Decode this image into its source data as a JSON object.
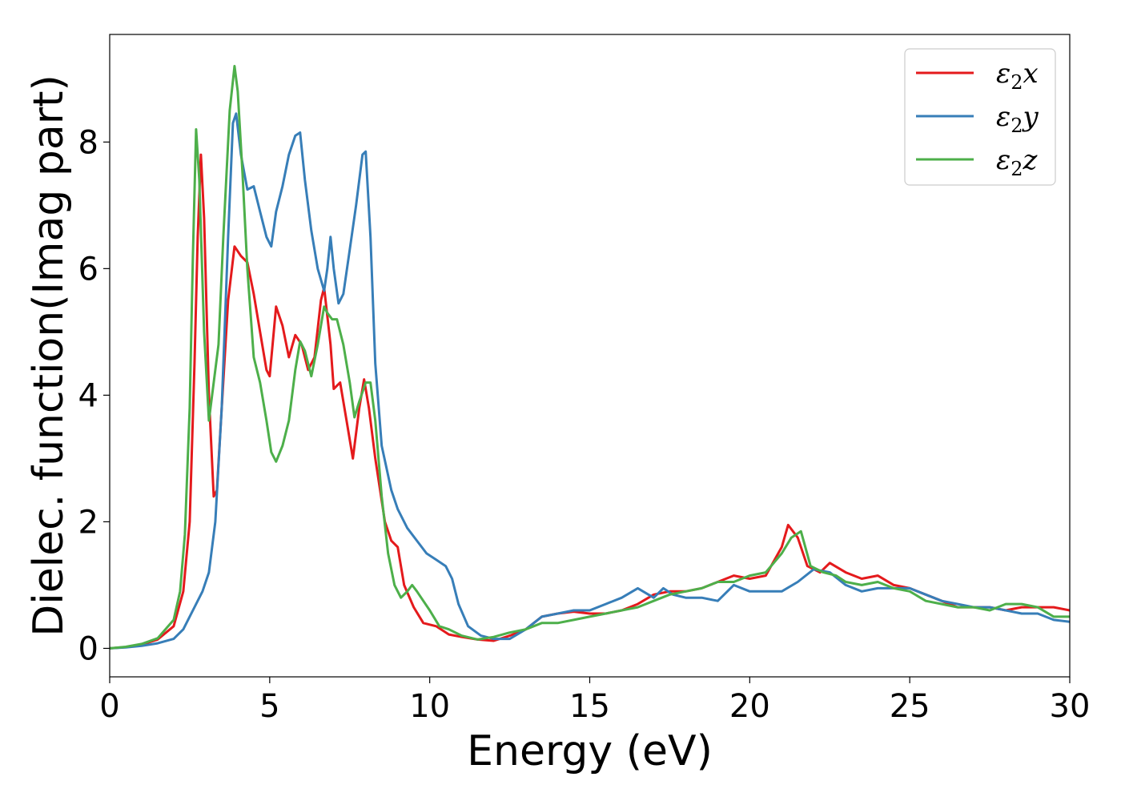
{
  "chart_data": {
    "type": "line",
    "xlabel": "Energy (eV)",
    "ylabel": "Dielec. function(Imag part)",
    "xlim": [
      0,
      30
    ],
    "ylim": [
      -0.45,
      9.7
    ],
    "xticks": [
      0,
      5,
      10,
      15,
      20,
      25,
      30
    ],
    "yticks": [
      0,
      2,
      4,
      6,
      8
    ],
    "grid": false,
    "legend_position": "top-right",
    "series": [
      {
        "name": "x",
        "legend_symbol": "ε",
        "legend_sub": "2",
        "color": "#e41a1c",
        "points": [
          [
            0,
            0
          ],
          [
            0.5,
            0.02
          ],
          [
            1.0,
            0.06
          ],
          [
            1.5,
            0.14
          ],
          [
            2.0,
            0.35
          ],
          [
            2.3,
            0.9
          ],
          [
            2.5,
            2.0
          ],
          [
            2.65,
            4.5
          ],
          [
            2.75,
            6.5
          ],
          [
            2.85,
            7.8
          ],
          [
            2.95,
            6.8
          ],
          [
            3.1,
            4.0
          ],
          [
            3.25,
            2.4
          ],
          [
            3.35,
            2.5
          ],
          [
            3.5,
            3.8
          ],
          [
            3.7,
            5.5
          ],
          [
            3.9,
            6.35
          ],
          [
            4.1,
            6.2
          ],
          [
            4.3,
            6.1
          ],
          [
            4.5,
            5.6
          ],
          [
            4.7,
            5.0
          ],
          [
            4.9,
            4.4
          ],
          [
            5.0,
            4.3
          ],
          [
            5.2,
            5.4
          ],
          [
            5.4,
            5.1
          ],
          [
            5.6,
            4.6
          ],
          [
            5.8,
            4.95
          ],
          [
            6.0,
            4.8
          ],
          [
            6.2,
            4.4
          ],
          [
            6.4,
            4.6
          ],
          [
            6.6,
            5.5
          ],
          [
            6.7,
            5.7
          ],
          [
            6.9,
            4.8
          ],
          [
            7.0,
            4.1
          ],
          [
            7.2,
            4.2
          ],
          [
            7.4,
            3.6
          ],
          [
            7.6,
            3.0
          ],
          [
            7.8,
            3.8
          ],
          [
            7.95,
            4.25
          ],
          [
            8.1,
            3.8
          ],
          [
            8.3,
            3.0
          ],
          [
            8.6,
            2.0
          ],
          [
            8.8,
            1.7
          ],
          [
            9.0,
            1.6
          ],
          [
            9.2,
            1.0
          ],
          [
            9.5,
            0.65
          ],
          [
            9.8,
            0.4
          ],
          [
            10.2,
            0.35
          ],
          [
            10.6,
            0.22
          ],
          [
            11.0,
            0.18
          ],
          [
            11.5,
            0.14
          ],
          [
            12.0,
            0.12
          ],
          [
            12.5,
            0.2
          ],
          [
            13.0,
            0.3
          ],
          [
            13.5,
            0.5
          ],
          [
            14.0,
            0.55
          ],
          [
            14.5,
            0.58
          ],
          [
            15.0,
            0.55
          ],
          [
            15.5,
            0.55
          ],
          [
            16.0,
            0.6
          ],
          [
            16.5,
            0.7
          ],
          [
            17.0,
            0.85
          ],
          [
            17.5,
            0.9
          ],
          [
            18.0,
            0.9
          ],
          [
            18.5,
            0.95
          ],
          [
            19.0,
            1.05
          ],
          [
            19.5,
            1.15
          ],
          [
            20.0,
            1.1
          ],
          [
            20.5,
            1.15
          ],
          [
            21.0,
            1.6
          ],
          [
            21.2,
            1.95
          ],
          [
            21.5,
            1.75
          ],
          [
            21.8,
            1.3
          ],
          [
            22.2,
            1.2
          ],
          [
            22.5,
            1.35
          ],
          [
            23.0,
            1.2
          ],
          [
            23.5,
            1.1
          ],
          [
            24.0,
            1.15
          ],
          [
            24.5,
            1.0
          ],
          [
            25.0,
            0.95
          ],
          [
            25.5,
            0.85
          ],
          [
            26.0,
            0.75
          ],
          [
            26.5,
            0.65
          ],
          [
            27.0,
            0.65
          ],
          [
            27.5,
            0.65
          ],
          [
            28.0,
            0.6
          ],
          [
            28.5,
            0.65
          ],
          [
            29.0,
            0.65
          ],
          [
            29.5,
            0.65
          ],
          [
            30.0,
            0.6
          ]
        ]
      },
      {
        "name": "y",
        "legend_symbol": "ε",
        "legend_sub": "2",
        "color": "#377eb8",
        "points": [
          [
            0,
            0
          ],
          [
            0.5,
            0.015
          ],
          [
            1.0,
            0.04
          ],
          [
            1.5,
            0.08
          ],
          [
            2.0,
            0.15
          ],
          [
            2.3,
            0.3
          ],
          [
            2.6,
            0.6
          ],
          [
            2.9,
            0.9
          ],
          [
            3.1,
            1.2
          ],
          [
            3.3,
            2.0
          ],
          [
            3.5,
            3.8
          ],
          [
            3.7,
            6.5
          ],
          [
            3.85,
            8.3
          ],
          [
            3.95,
            8.45
          ],
          [
            4.1,
            7.8
          ],
          [
            4.3,
            7.25
          ],
          [
            4.5,
            7.3
          ],
          [
            4.7,
            6.9
          ],
          [
            4.9,
            6.5
          ],
          [
            5.05,
            6.35
          ],
          [
            5.2,
            6.9
          ],
          [
            5.4,
            7.3
          ],
          [
            5.6,
            7.8
          ],
          [
            5.8,
            8.1
          ],
          [
            5.95,
            8.15
          ],
          [
            6.1,
            7.4
          ],
          [
            6.3,
            6.6
          ],
          [
            6.5,
            6.0
          ],
          [
            6.7,
            5.65
          ],
          [
            6.8,
            6.0
          ],
          [
            6.9,
            6.5
          ],
          [
            7.0,
            6.0
          ],
          [
            7.15,
            5.45
          ],
          [
            7.3,
            5.6
          ],
          [
            7.5,
            6.3
          ],
          [
            7.7,
            7.0
          ],
          [
            7.9,
            7.8
          ],
          [
            8.0,
            7.85
          ],
          [
            8.15,
            6.5
          ],
          [
            8.3,
            4.5
          ],
          [
            8.5,
            3.2
          ],
          [
            8.8,
            2.5
          ],
          [
            9.0,
            2.2
          ],
          [
            9.3,
            1.9
          ],
          [
            9.6,
            1.7
          ],
          [
            9.9,
            1.5
          ],
          [
            10.2,
            1.4
          ],
          [
            10.5,
            1.3
          ],
          [
            10.7,
            1.1
          ],
          [
            10.9,
            0.7
          ],
          [
            11.2,
            0.35
          ],
          [
            11.6,
            0.2
          ],
          [
            12.0,
            0.15
          ],
          [
            12.5,
            0.15
          ],
          [
            13.0,
            0.3
          ],
          [
            13.5,
            0.5
          ],
          [
            14.0,
            0.55
          ],
          [
            14.5,
            0.6
          ],
          [
            15.0,
            0.6
          ],
          [
            15.5,
            0.7
          ],
          [
            16.0,
            0.8
          ],
          [
            16.5,
            0.95
          ],
          [
            17.0,
            0.8
          ],
          [
            17.3,
            0.95
          ],
          [
            17.6,
            0.85
          ],
          [
            18.0,
            0.8
          ],
          [
            18.5,
            0.8
          ],
          [
            19.0,
            0.75
          ],
          [
            19.5,
            1.0
          ],
          [
            20.0,
            0.9
          ],
          [
            20.5,
            0.9
          ],
          [
            21.0,
            0.9
          ],
          [
            21.5,
            1.05
          ],
          [
            22.0,
            1.25
          ],
          [
            22.5,
            1.2
          ],
          [
            23.0,
            1.0
          ],
          [
            23.5,
            0.9
          ],
          [
            24.0,
            0.95
          ],
          [
            24.5,
            0.95
          ],
          [
            25.0,
            0.95
          ],
          [
            25.5,
            0.85
          ],
          [
            26.0,
            0.75
          ],
          [
            26.5,
            0.7
          ],
          [
            27.0,
            0.65
          ],
          [
            27.5,
            0.65
          ],
          [
            28.0,
            0.6
          ],
          [
            28.5,
            0.55
          ],
          [
            29.0,
            0.55
          ],
          [
            29.5,
            0.45
          ],
          [
            30.0,
            0.42
          ]
        ]
      },
      {
        "name": "z",
        "legend_symbol": "ε",
        "legend_sub": "2",
        "color": "#4daf4a",
        "points": [
          [
            0,
            0
          ],
          [
            0.5,
            0.025
          ],
          [
            1.0,
            0.07
          ],
          [
            1.5,
            0.16
          ],
          [
            2.0,
            0.45
          ],
          [
            2.2,
            0.9
          ],
          [
            2.35,
            1.8
          ],
          [
            2.5,
            3.8
          ],
          [
            2.6,
            6.2
          ],
          [
            2.7,
            8.2
          ],
          [
            2.8,
            7.4
          ],
          [
            2.95,
            5.0
          ],
          [
            3.1,
            3.6
          ],
          [
            3.25,
            4.2
          ],
          [
            3.4,
            4.8
          ],
          [
            3.55,
            6.5
          ],
          [
            3.75,
            8.5
          ],
          [
            3.9,
            9.2
          ],
          [
            4.0,
            8.8
          ],
          [
            4.15,
            7.5
          ],
          [
            4.3,
            6.0
          ],
          [
            4.5,
            4.6
          ],
          [
            4.7,
            4.2
          ],
          [
            4.9,
            3.6
          ],
          [
            5.05,
            3.1
          ],
          [
            5.2,
            2.95
          ],
          [
            5.4,
            3.2
          ],
          [
            5.6,
            3.6
          ],
          [
            5.8,
            4.4
          ],
          [
            5.95,
            4.85
          ],
          [
            6.1,
            4.7
          ],
          [
            6.3,
            4.3
          ],
          [
            6.5,
            4.8
          ],
          [
            6.7,
            5.4
          ],
          [
            6.8,
            5.3
          ],
          [
            6.95,
            5.2
          ],
          [
            7.1,
            5.2
          ],
          [
            7.3,
            4.8
          ],
          [
            7.5,
            4.2
          ],
          [
            7.65,
            3.65
          ],
          [
            7.8,
            3.9
          ],
          [
            8.0,
            4.2
          ],
          [
            8.15,
            4.2
          ],
          [
            8.3,
            3.6
          ],
          [
            8.5,
            2.4
          ],
          [
            8.7,
            1.5
          ],
          [
            8.9,
            1.0
          ],
          [
            9.1,
            0.8
          ],
          [
            9.3,
            0.9
          ],
          [
            9.45,
            1.0
          ],
          [
            9.6,
            0.9
          ],
          [
            9.8,
            0.75
          ],
          [
            10.0,
            0.6
          ],
          [
            10.3,
            0.35
          ],
          [
            10.6,
            0.3
          ],
          [
            11.0,
            0.2
          ],
          [
            11.5,
            0.14
          ],
          [
            12.0,
            0.18
          ],
          [
            12.5,
            0.25
          ],
          [
            13.0,
            0.3
          ],
          [
            13.5,
            0.4
          ],
          [
            14.0,
            0.4
          ],
          [
            14.5,
            0.45
          ],
          [
            15.0,
            0.5
          ],
          [
            15.5,
            0.55
          ],
          [
            16.0,
            0.6
          ],
          [
            16.5,
            0.65
          ],
          [
            17.0,
            0.75
          ],
          [
            17.5,
            0.85
          ],
          [
            18.0,
            0.9
          ],
          [
            18.5,
            0.95
          ],
          [
            19.0,
            1.05
          ],
          [
            19.5,
            1.05
          ],
          [
            20.0,
            1.15
          ],
          [
            20.5,
            1.2
          ],
          [
            21.0,
            1.5
          ],
          [
            21.3,
            1.75
          ],
          [
            21.6,
            1.85
          ],
          [
            21.9,
            1.3
          ],
          [
            22.3,
            1.2
          ],
          [
            22.7,
            1.15
          ],
          [
            23.0,
            1.05
          ],
          [
            23.5,
            1.0
          ],
          [
            24.0,
            1.05
          ],
          [
            24.5,
            0.95
          ],
          [
            25.0,
            0.9
          ],
          [
            25.5,
            0.75
          ],
          [
            26.0,
            0.7
          ],
          [
            26.5,
            0.65
          ],
          [
            27.0,
            0.65
          ],
          [
            27.5,
            0.6
          ],
          [
            28.0,
            0.7
          ],
          [
            28.5,
            0.7
          ],
          [
            29.0,
            0.65
          ],
          [
            29.5,
            0.5
          ],
          [
            30.0,
            0.5
          ]
        ]
      }
    ]
  }
}
